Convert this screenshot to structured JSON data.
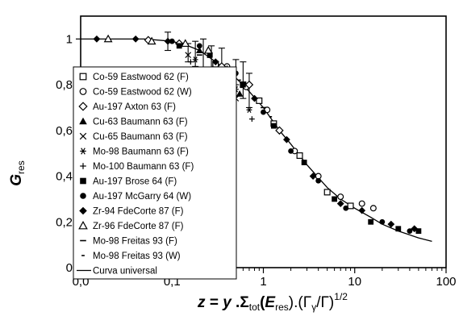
{
  "chart_data": {
    "type": "scatter",
    "x_scale": "log",
    "xlim": [
      0.01,
      100
    ],
    "ylim": [
      0,
      1.1
    ],
    "x_ticks": [
      "0,0",
      "0,1",
      "1",
      "10",
      "100"
    ],
    "x_tick_values": [
      0.01,
      0.1,
      1,
      10,
      100
    ],
    "y_ticks": [
      "0",
      "0,2",
      "0,4",
      "0,6",
      "0,8",
      "1"
    ],
    "y_tick_values": [
      0,
      0.2,
      0.4,
      0.6,
      0.8,
      1
    ],
    "ylabel_main": "G",
    "ylabel_sub": "res",
    "xlabel": {
      "z": "z",
      "eq": " = ",
      "y": "y",
      "dot1": " .Σ",
      "sub_tot": "tot",
      "paren_open": "(",
      "E": "E",
      "sub_res": "res",
      "mid": ").(Γ",
      "sub_gamma": "γ",
      "tail": "/Γ)",
      "sup": "1/2"
    },
    "legend_position": "left",
    "series": [
      {
        "name": "Co-59 Eastwood 62 (F)",
        "marker": "square-open",
        "points": [
          [
            0.3,
            0.89
          ],
          [
            0.45,
            0.86
          ],
          [
            0.6,
            0.8
          ],
          [
            0.9,
            0.73
          ],
          [
            1.3,
            0.63
          ],
          [
            2.5,
            0.49
          ],
          [
            5,
            0.33
          ],
          [
            9,
            0.27
          ]
        ]
      },
      {
        "name": "Co-59 Eastwood 62 (W)",
        "marker": "circle-open",
        "points": [
          [
            0.4,
            0.88
          ],
          [
            0.65,
            0.79
          ],
          [
            1.1,
            0.69
          ],
          [
            2.2,
            0.51
          ],
          [
            4,
            0.4
          ],
          [
            7,
            0.31
          ],
          [
            12,
            0.28
          ],
          [
            16,
            0.26
          ]
        ]
      },
      {
        "name": "Au-197 Axton 63 (F)",
        "marker": "diamond-open",
        "points": [
          [
            0.055,
            0.995
          ],
          [
            0.12,
            0.98
          ],
          [
            0.35,
            0.88
          ],
          [
            0.7,
            0.8
          ],
          [
            1.5,
            0.6
          ]
        ]
      },
      {
        "name": "Cu-63 Baumann 63 (F)",
        "marker": "triangle-filled",
        "points": [
          [
            0.2,
            0.95
          ],
          [
            0.28,
            0.87
          ],
          [
            0.4,
            0.87
          ],
          [
            0.55,
            0.76
          ]
        ]
      },
      {
        "name": "Cu-65 Baumann 63 (F)",
        "marker": "x",
        "points": [
          [
            0.15,
            0.93
          ],
          [
            0.22,
            0.84
          ],
          [
            0.33,
            0.85
          ],
          [
            0.5,
            0.74
          ]
        ]
      },
      {
        "name": "Mo-98 Baumann 63 (F)",
        "marker": "asterisk",
        "points": [
          [
            0.18,
            0.91
          ],
          [
            0.27,
            0.86
          ],
          [
            0.5,
            0.78
          ],
          [
            0.7,
            0.69
          ]
        ]
      },
      {
        "name": "Mo-100 Baumann 63 (F)",
        "marker": "plus",
        "points": [
          [
            0.16,
            0.9
          ],
          [
            0.3,
            0.84
          ],
          [
            0.45,
            0.8
          ],
          [
            0.75,
            0.65
          ]
        ]
      },
      {
        "name": "Au-197 Brose 64 (F)",
        "marker": "square-filled",
        "points": [
          [
            0.12,
            0.97
          ],
          [
            0.26,
            0.93
          ],
          [
            0.6,
            0.8
          ],
          [
            1.3,
            0.62
          ],
          [
            2.8,
            0.46
          ],
          [
            6,
            0.3
          ],
          [
            15,
            0.2
          ],
          [
            30,
            0.17
          ],
          [
            50,
            0.16
          ]
        ]
      },
      {
        "name": "Au-197 McGarry 64 (W)",
        "marker": "circle-filled",
        "points": [
          [
            0.1,
            0.99
          ],
          [
            0.2,
            0.97
          ],
          [
            0.5,
            0.85
          ],
          [
            1,
            0.68
          ],
          [
            2,
            0.51
          ],
          [
            4,
            0.38
          ],
          [
            8,
            0.26
          ],
          [
            20,
            0.2
          ],
          [
            40,
            0.16
          ]
        ]
      },
      {
        "name": "Zr-94 FdeCorte 87 (F)",
        "marker": "diamond-filled",
        "points": [
          [
            0.015,
            1.0
          ],
          [
            0.04,
            1.0
          ],
          [
            0.09,
            0.99
          ],
          [
            0.3,
            0.9
          ],
          [
            0.8,
            0.74
          ],
          [
            1.8,
            0.56
          ],
          [
            3.5,
            0.4
          ],
          [
            7,
            0.28
          ],
          [
            12,
            0.25
          ],
          [
            25,
            0.19
          ],
          [
            45,
            0.17
          ]
        ]
      },
      {
        "name": "Zr-96 FdeCorte 87 (F)",
        "marker": "triangle-open",
        "points": [
          [
            0.02,
            1.0
          ],
          [
            0.06,
            0.99
          ],
          [
            0.14,
            0.98
          ],
          [
            0.25,
            0.95
          ]
        ]
      },
      {
        "name": "Mo-98 Freitas 93 (F)",
        "marker": "dash",
        "points": [
          [
            0.2,
            0.93
          ],
          [
            0.45,
            0.85
          ],
          [
            1,
            0.7
          ]
        ]
      },
      {
        "name": "Mo-98 Freitas 93 (W)",
        "marker": "dash-short",
        "points": [
          [
            0.25,
            0.92
          ],
          [
            0.55,
            0.82
          ],
          [
            1.2,
            0.66
          ]
        ]
      }
    ],
    "error_bars": [
      {
        "x": 0.09,
        "y": 0.99,
        "lo": 0.95,
        "hi": 1.03
      },
      {
        "x": 0.15,
        "y": 0.94,
        "lo": 0.9,
        "hi": 0.98
      },
      {
        "x": 0.18,
        "y": 0.93,
        "lo": 0.88,
        "hi": 0.99
      },
      {
        "x": 0.22,
        "y": 0.93,
        "lo": 0.86,
        "hi": 1.0
      },
      {
        "x": 0.27,
        "y": 0.9,
        "lo": 0.84,
        "hi": 0.97
      },
      {
        "x": 0.35,
        "y": 0.88,
        "lo": 0.8,
        "hi": 0.96
      },
      {
        "x": 0.5,
        "y": 0.86,
        "lo": 0.8,
        "hi": 0.91
      },
      {
        "x": 0.6,
        "y": 0.82,
        "lo": 0.74,
        "hi": 0.9
      },
      {
        "x": 0.7,
        "y": 0.77,
        "lo": 0.7,
        "hi": 0.85
      }
    ],
    "curve": {
      "name": "Curva universal",
      "x": [
        0.01,
        0.05,
        0.1,
        0.15,
        0.2,
        0.3,
        0.5,
        0.7,
        1,
        1.5,
        2,
        3,
        5,
        7,
        10,
        15,
        20,
        30,
        50,
        70
      ],
      "y": [
        1.0,
        1.0,
        0.99,
        0.97,
        0.95,
        0.9,
        0.83,
        0.77,
        0.7,
        0.6,
        0.54,
        0.45,
        0.35,
        0.3,
        0.26,
        0.22,
        0.19,
        0.16,
        0.13,
        0.115
      ]
    }
  }
}
